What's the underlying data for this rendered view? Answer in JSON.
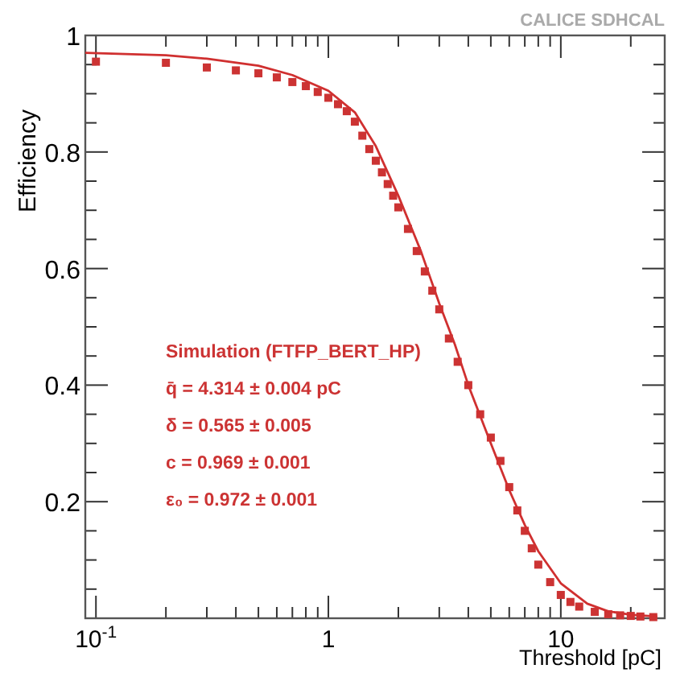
{
  "chart_data": {
    "type": "scatter",
    "xlabel": "Threshold [pC]",
    "ylabel": "Efficiency",
    "log": "x",
    "xlim": [
      0.09,
      28
    ],
    "ylim": [
      0,
      1
    ],
    "xticks": [
      {
        "value": 0.1,
        "label": "10$^{-1}$"
      },
      {
        "value": 0.2,
        "label": null
      },
      {
        "value": 0.3,
        "label": null
      },
      {
        "value": 0.4,
        "label": null
      },
      {
        "value": 0.5,
        "label": null
      },
      {
        "value": 0.6,
        "label": null
      },
      {
        "value": 0.7,
        "label": null
      },
      {
        "value": 0.8,
        "label": null
      },
      {
        "value": 0.9,
        "label": null
      },
      1,
      {
        "value": 2,
        "label": null
      },
      {
        "value": 3,
        "label": null
      },
      {
        "value": 4,
        "label": null
      },
      {
        "value": 5,
        "label": null
      },
      {
        "value": 6,
        "label": null
      },
      {
        "value": 7,
        "label": null
      },
      {
        "value": 8,
        "label": null
      },
      {
        "value": 9,
        "label": null
      },
      10,
      {
        "value": 20,
        "label": null
      }
    ],
    "yticks": [
      {
        "value": 0.05,
        "label": null
      },
      {
        "value": 0.1,
        "label": null
      },
      {
        "value": 0.15,
        "label": null
      },
      0.2,
      {
        "value": 0.25,
        "label": null
      },
      {
        "value": 0.3,
        "label": null
      },
      {
        "value": 0.35,
        "label": null
      },
      0.4,
      {
        "value": 0.45,
        "label": null
      },
      {
        "value": 0.5,
        "label": null
      },
      {
        "value": 0.55,
        "label": null
      },
      0.6,
      {
        "value": 0.65,
        "label": null
      },
      {
        "value": 0.7,
        "label": null
      },
      {
        "value": 0.75,
        "label": null
      },
      0.8,
      {
        "value": 0.85,
        "label": null
      },
      {
        "value": 0.9,
        "label": null
      },
      {
        "value": 0.95,
        "label": null
      },
      1
    ],
    "grid": false,
    "series": [
      {
        "marker": "square",
        "color": "#cc3333",
        "x": [
          0.1,
          0.2,
          0.3,
          0.4,
          0.5,
          0.6,
          0.7,
          0.8,
          0.9,
          1.0,
          1.1,
          1.2,
          1.3,
          1.4,
          1.5,
          1.6,
          1.7,
          1.8,
          1.9,
          2.0,
          2.2,
          2.4,
          2.6,
          2.8,
          3.0,
          3.3,
          3.6,
          4.0,
          4.5,
          5.0,
          5.5,
          6.0,
          6.5,
          7.0,
          7.5,
          8,
          9,
          10,
          11,
          12,
          14,
          16,
          18,
          20,
          22,
          25
        ],
        "values": [
          0.955,
          0.953,
          0.945,
          0.94,
          0.935,
          0.928,
          0.92,
          0.913,
          0.903,
          0.893,
          0.882,
          0.87,
          0.852,
          0.828,
          0.805,
          0.785,
          0.765,
          0.745,
          0.725,
          0.705,
          0.668,
          0.63,
          0.595,
          0.562,
          0.53,
          0.48,
          0.44,
          0.4,
          0.35,
          0.31,
          0.27,
          0.225,
          0.185,
          0.15,
          0.12,
          0.092,
          0.062,
          0.04,
          0.028,
          0.02,
          0.011,
          0.007,
          0.005,
          0.004,
          0.003,
          0.002
        ]
      },
      {
        "type": "line",
        "marker": "none",
        "line_style": "solid",
        "color": "#d03030",
        "x": [
          0.09,
          0.2,
          0.3,
          0.5,
          0.7,
          1,
          1.3,
          1.6,
          2,
          2.5,
          3,
          3.5,
          4,
          5,
          6,
          7,
          8,
          10,
          13,
          16,
          20,
          26
        ],
        "values": [
          0.97,
          0.966,
          0.96,
          0.948,
          0.932,
          0.905,
          0.868,
          0.81,
          0.725,
          0.63,
          0.54,
          0.47,
          0.4,
          0.3,
          0.22,
          0.16,
          0.115,
          0.06,
          0.025,
          0.012,
          0.006,
          0.003
        ]
      }
    ],
    "annotations": [
      "CALICE SDHCAL",
      "Simulation (FTFP_BERT_HP)",
      "q̄ = 4.314 ± 0.004 pC",
      "δ = 0.565 ± 0.005",
      "c = 0.969 ± 0.001",
      "ε₀ = 0.972 ± 0.001"
    ]
  }
}
